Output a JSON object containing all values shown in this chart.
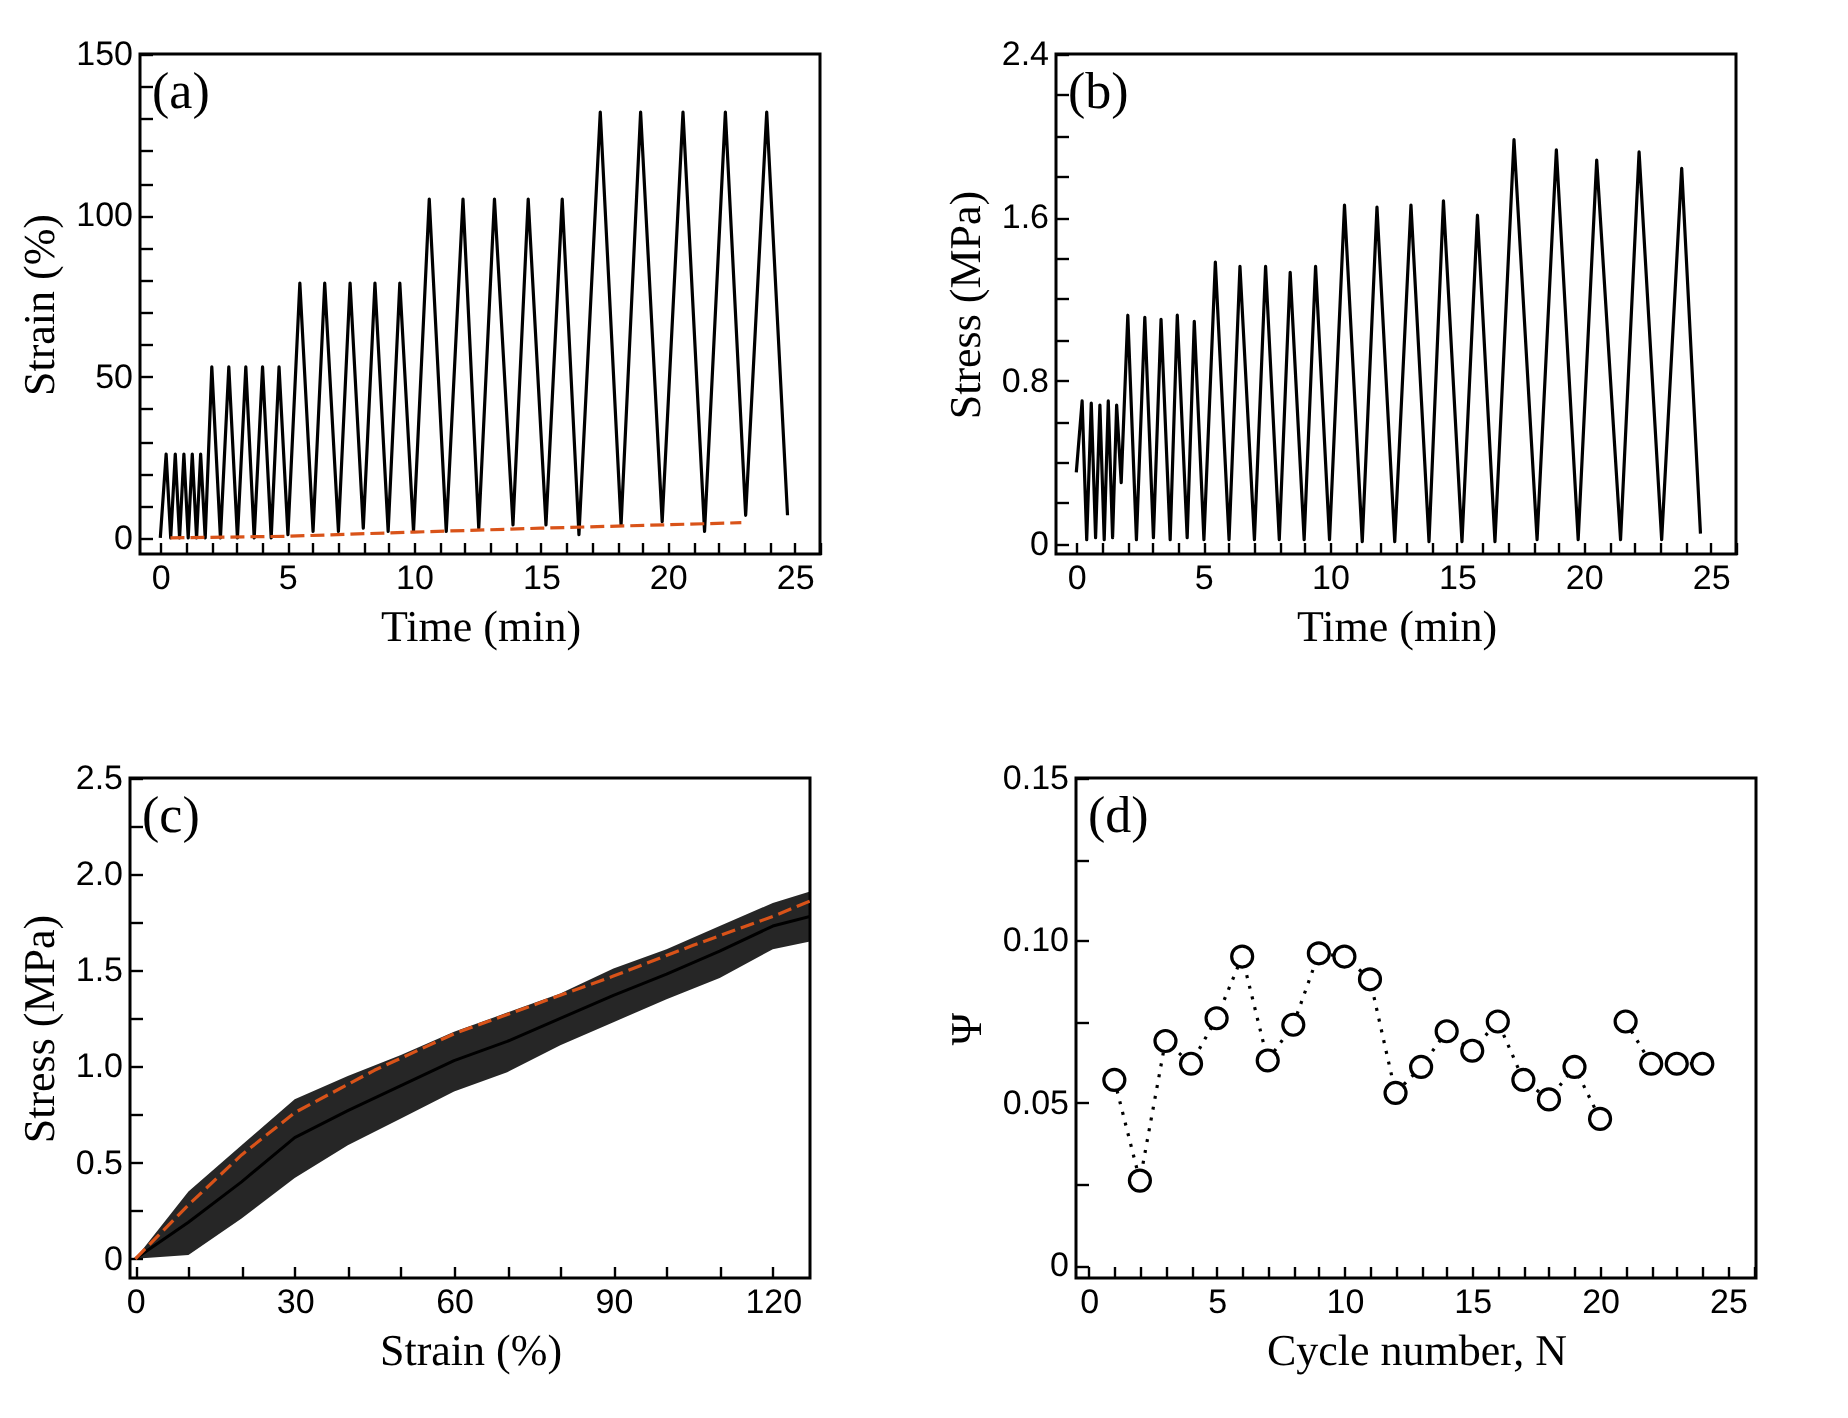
{
  "chart_data": [
    {
      "type": "line",
      "xlabel": "Time (min)",
      "ylabel": "Strain (%)",
      "annotations": [
        "(a)"
      ],
      "xlim": [
        -0.8,
        26
      ],
      "ylim": [
        -5,
        150
      ],
      "xticks": [
        0,
        {
          "value": 1,
          "label": null
        },
        {
          "value": 2,
          "label": null
        },
        {
          "value": 3,
          "label": null
        },
        {
          "value": 4,
          "label": null
        },
        5,
        {
          "value": 6,
          "label": null
        },
        {
          "value": 7,
          "label": null
        },
        {
          "value": 8,
          "label": null
        },
        {
          "value": 9,
          "label": null
        },
        10,
        {
          "value": 11,
          "label": null
        },
        {
          "value": 12,
          "label": null
        },
        {
          "value": 13,
          "label": null
        },
        {
          "value": 14,
          "label": null
        },
        15,
        {
          "value": 16,
          "label": null
        },
        {
          "value": 17,
          "label": null
        },
        {
          "value": 18,
          "label": null
        },
        {
          "value": 19,
          "label": null
        },
        20,
        {
          "value": 21,
          "label": null
        },
        {
          "value": 22,
          "label": null
        },
        {
          "value": 23,
          "label": null
        },
        {
          "value": 24,
          "label": null
        },
        25,
        {
          "value": 26,
          "label": null
        }
      ],
      "yticks": [
        0,
        {
          "value": 10,
          "label": null
        },
        {
          "value": 20,
          "label": null
        },
        {
          "value": 30,
          "label": null
        },
        {
          "value": 40,
          "label": null
        },
        50,
        {
          "value": 60,
          "label": null
        },
        {
          "value": 70,
          "label": null
        },
        {
          "value": 80,
          "label": null
        },
        {
          "value": 90,
          "label": null
        },
        100,
        {
          "value": 110,
          "label": null
        },
        {
          "value": 120,
          "label": null
        },
        {
          "value": 130,
          "label": null
        },
        {
          "value": 140,
          "label": null
        },
        150
      ],
      "series": [
        {
          "color": "#000000",
          "x": [
            0,
            0.23,
            0.41,
            0.59,
            0.76,
            0.93,
            1.1,
            1.26,
            1.43,
            1.59,
            1.77,
            2.03,
            2.37,
            2.7,
            3.04,
            3.37,
            3.7,
            4.03,
            4.37,
            4.68,
            5.03,
            5.5,
            6.02,
            6.48,
            7.02,
            7.48,
            8.0,
            8.46,
            8.98,
            9.44,
            9.98,
            10.6,
            11.27,
            11.93,
            12.55,
            13.17,
            13.9,
            14.5,
            15.2,
            15.84,
            16.5,
            17.34,
            18.16,
            18.93,
            19.78,
            20.6,
            21.45,
            22.27,
            23.07,
            23.9,
            24.72
          ],
          "values": [
            0,
            26,
            0,
            26,
            0,
            26,
            0,
            26,
            0,
            26,
            0,
            53,
            0,
            53,
            0,
            53,
            0,
            53,
            0,
            53,
            1,
            79,
            2,
            79,
            2,
            79,
            3,
            79,
            2,
            79,
            2,
            105,
            2,
            105,
            3,
            105,
            4,
            105,
            4,
            105,
            1,
            132,
            4,
            132,
            5,
            132,
            2,
            132,
            7,
            132,
            7
          ]
        },
        {
          "color": "#d95319",
          "line_style": "dashed",
          "x": [
            0.4,
            5,
            10,
            15,
            22.9
          ],
          "values": [
            0,
            0.5,
            1.8,
            3,
            4.7
          ]
        }
      ]
    },
    {
      "type": "line",
      "xlabel": "Time (min)",
      "ylabel": "Stress (MPa)",
      "annotations": [
        "(b)"
      ],
      "xlim": [
        -0.8,
        26
      ],
      "ylim": [
        -0.05,
        2.4
      ],
      "xticks": [
        0,
        {
          "value": 1,
          "label": null
        },
        {
          "value": 2,
          "label": null
        },
        {
          "value": 3,
          "label": null
        },
        {
          "value": 4,
          "label": null
        },
        5,
        {
          "value": 6,
          "label": null
        },
        {
          "value": 7,
          "label": null
        },
        {
          "value": 8,
          "label": null
        },
        {
          "value": 9,
          "label": null
        },
        10,
        {
          "value": 11,
          "label": null
        },
        {
          "value": 12,
          "label": null
        },
        {
          "value": 13,
          "label": null
        },
        {
          "value": 14,
          "label": null
        },
        15,
        {
          "value": 16,
          "label": null
        },
        {
          "value": 17,
          "label": null
        },
        {
          "value": 18,
          "label": null
        },
        {
          "value": 19,
          "label": null
        },
        20,
        {
          "value": 21,
          "label": null
        },
        {
          "value": 22,
          "label": null
        },
        {
          "value": 23,
          "label": null
        },
        {
          "value": 24,
          "label": null
        },
        25,
        {
          "value": 26,
          "label": null
        }
      ],
      "yticks": [
        0,
        {
          "value": 0.2,
          "label": null
        },
        {
          "value": 0.4,
          "label": null
        },
        {
          "value": 0.6,
          "label": null
        },
        0.8,
        {
          "value": 1.0,
          "label": null
        },
        {
          "value": 1.2,
          "label": null
        },
        {
          "value": 1.4,
          "label": null
        },
        1.6,
        {
          "value": 1.8,
          "label": null
        },
        {
          "value": 2.0,
          "label": null
        },
        {
          "value": 2.2,
          "label": null
        },
        2.4
      ],
      "series": [
        {
          "color": "#000000",
          "x": [
            0,
            0.23,
            0.41,
            0.59,
            0.76,
            0.93,
            1.1,
            1.26,
            1.43,
            1.59,
            1.77,
            2.03,
            2.37,
            2.7,
            3.04,
            3.34,
            3.7,
            3.98,
            4.37,
            4.65,
            5.03,
            5.48,
            6.02,
            6.45,
            7.02,
            7.46,
            8.0,
            8.43,
            8.98,
            9.43,
            9.98,
            10.57,
            11.27,
            11.85,
            12.55,
            13.19,
            13.9,
            14.47,
            15.2,
            15.81,
            16.5,
            17.25,
            18.16,
            18.92,
            19.78,
            20.51,
            21.45,
            22.18,
            23.07,
            23.86,
            24.6
          ],
          "values": [
            0.35,
            0.7,
            0.02,
            0.69,
            0.03,
            0.68,
            0.02,
            0.7,
            0.03,
            0.68,
            0.3,
            1.12,
            0.02,
            1.11,
            0.03,
            1.1,
            0.02,
            1.12,
            0.03,
            1.09,
            0.02,
            1.38,
            0.02,
            1.36,
            0.02,
            1.36,
            0.02,
            1.33,
            0.02,
            1.36,
            0.02,
            1.66,
            0.01,
            1.65,
            0.01,
            1.66,
            0.01,
            1.68,
            0.01,
            1.61,
            0.01,
            1.98,
            0.02,
            1.93,
            0.02,
            1.88,
            0.02,
            1.92,
            0.02,
            1.84,
            0.05
          ]
        }
      ]
    },
    {
      "type": "line",
      "xlabel": "Strain (%)",
      "ylabel": "Stress (MPa)",
      "annotations": [
        "(c)"
      ],
      "xlim": [
        -1,
        127
      ],
      "ylim": [
        -0.1,
        2.5
      ],
      "xticks": [
        0,
        {
          "value": 10,
          "label": null
        },
        {
          "value": 20,
          "label": null
        },
        30,
        {
          "value": 40,
          "label": null
        },
        {
          "value": 50,
          "label": null
        },
        60,
        {
          "value": 70,
          "label": null
        },
        {
          "value": 80,
          "label": null
        },
        90,
        {
          "value": 100,
          "label": null
        },
        {
          "value": 110,
          "label": null
        },
        120
      ],
      "yticks": [
        0,
        {
          "value": 0.25,
          "label": null
        },
        0.5,
        {
          "value": 0.75,
          "label": null
        },
        {
          "value": 1,
          "label": "1.0"
        },
        {
          "value": 1.25,
          "label": null
        },
        1.5,
        {
          "value": 1.75,
          "label": null
        },
        {
          "value": 2,
          "label": "2.0"
        },
        {
          "value": 2.25,
          "label": null
        },
        2.5
      ],
      "series": [
        {
          "color": "#000000",
          "x": [
            0,
            10,
            20,
            30,
            40,
            50,
            60,
            70,
            80,
            90,
            100,
            110,
            120,
            127
          ],
          "values": [
            0,
            0.19,
            0.4,
            0.63,
            0.77,
            0.9,
            1.03,
            1.13,
            1.25,
            1.37,
            1.48,
            1.6,
            1.73,
            1.78
          ],
          "lower": [
            0,
            0.02,
            0.21,
            0.42,
            0.59,
            0.73,
            0.87,
            0.97,
            1.11,
            1.23,
            1.35,
            1.46,
            1.61,
            1.65
          ],
          "upper": [
            0,
            0.35,
            0.59,
            0.83,
            0.95,
            1.06,
            1.18,
            1.28,
            1.38,
            1.51,
            1.61,
            1.73,
            1.85,
            1.91
          ]
        },
        {
          "color": "#d95319",
          "line_style": "dashed",
          "x": [
            0,
            10,
            20,
            30,
            45,
            60,
            75,
            90,
            105,
            120,
            127
          ],
          "values": [
            0,
            0.28,
            0.54,
            0.76,
            0.98,
            1.17,
            1.32,
            1.47,
            1.63,
            1.78,
            1.86
          ]
        }
      ]
    },
    {
      "type": "line",
      "xlabel": "Cycle number, N",
      "ylabel": "Ψ",
      "annotations": [
        "(d)"
      ],
      "marker": "circle",
      "line_style": "dotted",
      "xlim": [
        -0.5,
        26.1
      ],
      "ylim": [
        -0.004,
        0.15
      ],
      "xticks": [
        0,
        {
          "value": 1,
          "label": null
        },
        {
          "value": 2,
          "label": null
        },
        {
          "value": 3,
          "label": null
        },
        {
          "value": 4,
          "label": null
        },
        5,
        {
          "value": 6,
          "label": null
        },
        {
          "value": 7,
          "label": null
        },
        {
          "value": 8,
          "label": null
        },
        {
          "value": 9,
          "label": null
        },
        10,
        {
          "value": 11,
          "label": null
        },
        {
          "value": 12,
          "label": null
        },
        {
          "value": 13,
          "label": null
        },
        {
          "value": 14,
          "label": null
        },
        15,
        {
          "value": 16,
          "label": null
        },
        {
          "value": 17,
          "label": null
        },
        {
          "value": 18,
          "label": null
        },
        {
          "value": 19,
          "label": null
        },
        20,
        {
          "value": 21,
          "label": null
        },
        {
          "value": 22,
          "label": null
        },
        {
          "value": 23,
          "label": null
        },
        {
          "value": 24,
          "label": null
        },
        25,
        {
          "value": 26,
          "label": null
        }
      ],
      "yticks": [
        0,
        {
          "value": 0.025,
          "label": null
        },
        0.05,
        {
          "value": 0.075,
          "label": null
        },
        {
          "value": 0.1,
          "label": "0.10"
        },
        {
          "value": 0.125,
          "label": null
        },
        0.15
      ],
      "series": [
        {
          "color": "#000000",
          "x": [
            1,
            2,
            3,
            4,
            5,
            6,
            7,
            8,
            9,
            10,
            11,
            12,
            13,
            14,
            15,
            16,
            17,
            18,
            19,
            20
          ],
          "values": [
            0.057,
            0.026,
            0.069,
            0.062,
            0.076,
            0.095,
            0.063,
            0.074,
            0.096,
            0.095,
            0.088,
            0.053,
            0.061,
            0.072,
            0.066,
            0.075,
            0.057,
            0.051,
            0.061,
            0.045
          ]
        },
        {
          "color": "#000000",
          "x": [
            21,
            22,
            23,
            24
          ],
          "values": [
            0.075,
            0.062,
            0.062,
            0.062
          ]
        }
      ]
    }
  ]
}
